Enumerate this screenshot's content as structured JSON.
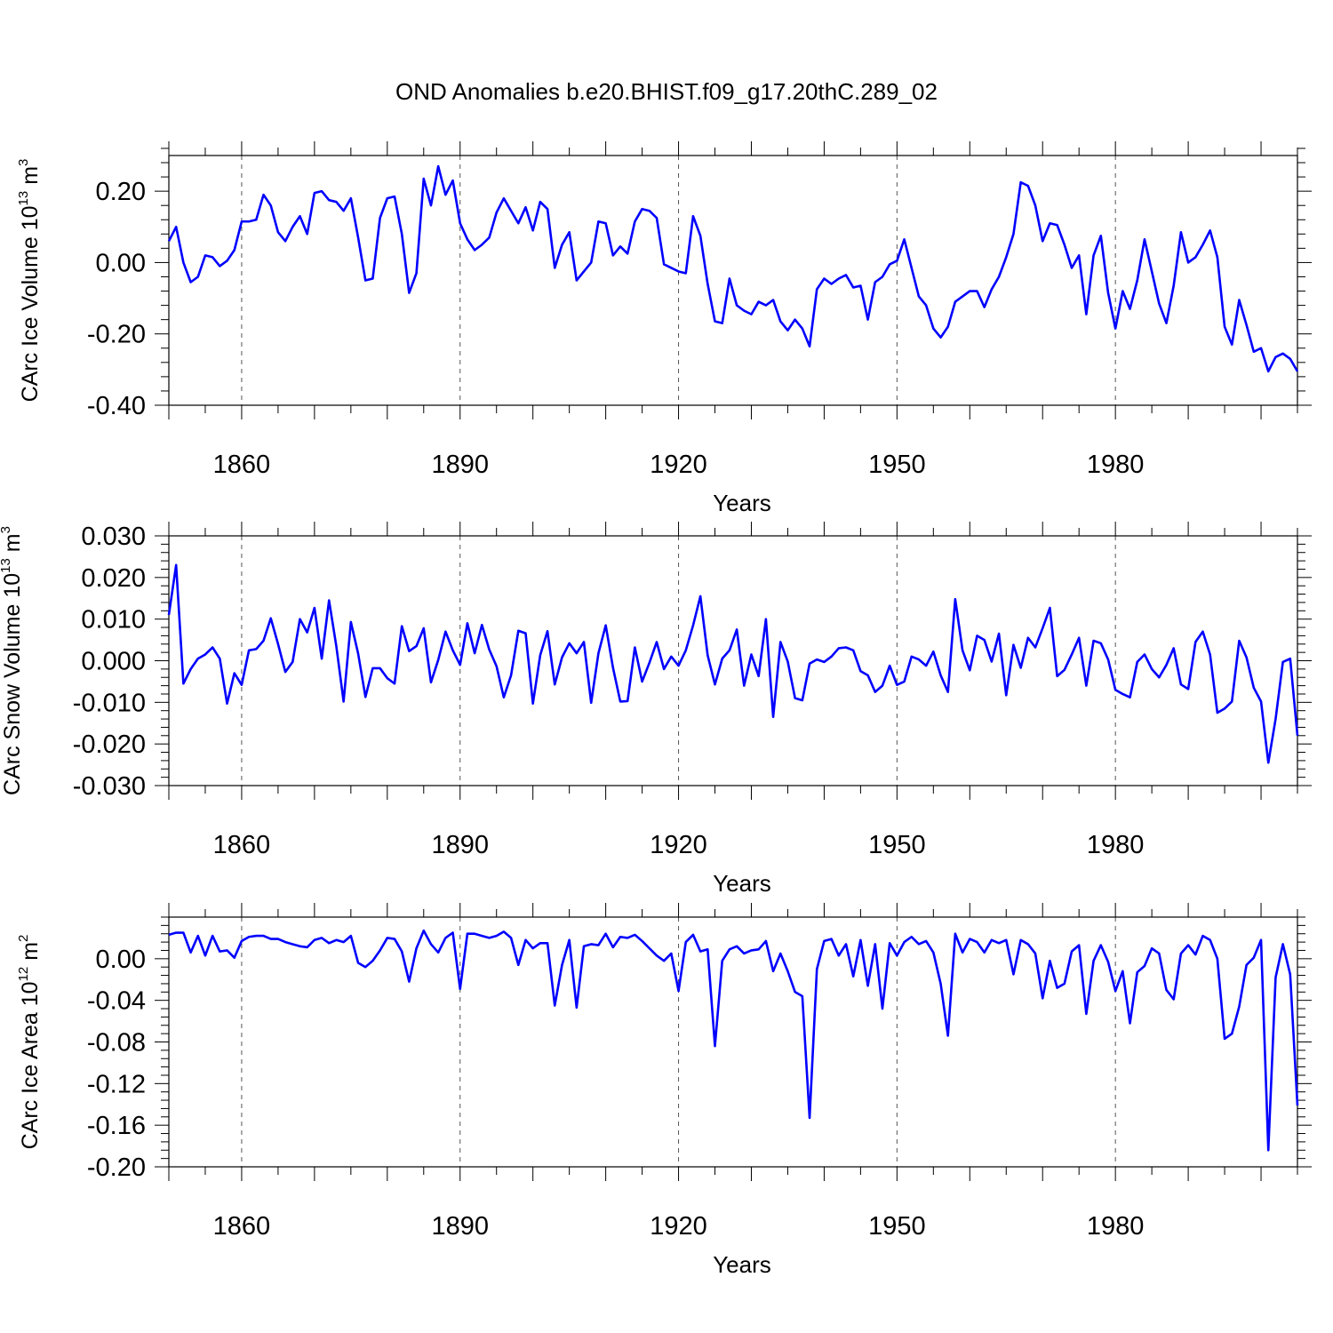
{
  "title": "OND Anomalies b.e20.BHIST.f09_g17.20thC.289_02",
  "colors": {
    "series": "#0000ff",
    "axis": "#000000",
    "grid": "#555555",
    "background": "#ffffff"
  },
  "chart_data": [
    {
      "type": "line",
      "name": "ice-volume",
      "ylabel": {
        "text": "CArc Ice Volume 10",
        "exp": "13",
        "unit": " m",
        "unit_exp": "3"
      },
      "xlabel": "Years",
      "xlim": [
        1850,
        2005
      ],
      "ylim": [
        -0.4,
        0.3
      ],
      "yticks": [
        -0.4,
        -0.2,
        0.0,
        0.2
      ],
      "ytick_labels": [
        "-0.40",
        "-0.20",
        "0.00",
        "0.20"
      ],
      "xticks": [
        1860,
        1890,
        1920,
        1950,
        1980
      ],
      "xtick_labels": [
        "1860",
        "1890",
        "1920",
        "1950",
        "1980"
      ],
      "grid": "dashed vertical at major x ticks",
      "x_start": 1850,
      "values": [
        0.06,
        0.1,
        0.0,
        -0.055,
        -0.04,
        0.02,
        0.015,
        -0.01,
        0.005,
        0.035,
        0.115,
        0.115,
        0.12,
        0.19,
        0.16,
        0.085,
        0.06,
        0.1,
        0.13,
        0.08,
        0.195,
        0.2,
        0.175,
        0.17,
        0.145,
        0.18,
        0.07,
        -0.05,
        -0.045,
        0.125,
        0.18,
        0.185,
        0.08,
        -0.085,
        -0.03,
        0.235,
        0.16,
        0.27,
        0.19,
        0.23,
        0.11,
        0.065,
        0.035,
        0.05,
        0.07,
        0.14,
        0.18,
        0.145,
        0.11,
        0.155,
        0.09,
        0.17,
        0.15,
        -0.015,
        0.05,
        0.085,
        -0.05,
        -0.025,
        0.0,
        0.115,
        0.11,
        0.02,
        0.045,
        0.025,
        0.115,
        0.15,
        0.145,
        0.125,
        -0.005,
        -0.015,
        -0.025,
        -0.03,
        0.13,
        0.075,
        -0.06,
        -0.165,
        -0.17,
        -0.045,
        -0.12,
        -0.135,
        -0.145,
        -0.11,
        -0.12,
        -0.105,
        -0.165,
        -0.19,
        -0.16,
        -0.185,
        -0.235,
        -0.075,
        -0.045,
        -0.06,
        -0.045,
        -0.035,
        -0.07,
        -0.065,
        -0.16,
        -0.055,
        -0.04,
        -0.005,
        0.005,
        0.065,
        -0.015,
        -0.095,
        -0.12,
        -0.185,
        -0.21,
        -0.18,
        -0.11,
        -0.095,
        -0.08,
        -0.08,
        -0.125,
        -0.075,
        -0.04,
        0.015,
        0.08,
        0.225,
        0.215,
        0.16,
        0.06,
        0.11,
        0.105,
        0.05,
        -0.015,
        0.02,
        -0.145,
        0.02,
        0.075,
        -0.085,
        -0.185,
        -0.08,
        -0.13,
        -0.05,
        0.065,
        -0.025,
        -0.115,
        -0.17,
        -0.065,
        0.085,
        0.0,
        0.015,
        0.05,
        0.09,
        0.015,
        -0.18,
        -0.23,
        -0.105,
        -0.175,
        -0.25,
        -0.24,
        -0.305,
        -0.265,
        -0.255,
        -0.27,
        -0.305
      ]
    },
    {
      "type": "line",
      "name": "snow-volume",
      "ylabel": {
        "text": "CArc Snow Volume 10",
        "exp": "13",
        "unit": " m",
        "unit_exp": "3"
      },
      "xlabel": "Years",
      "xlim": [
        1850,
        2005
      ],
      "ylim": [
        -0.03,
        0.03
      ],
      "yticks": [
        -0.03,
        -0.02,
        -0.01,
        0.0,
        0.01,
        0.02,
        0.03
      ],
      "ytick_labels": [
        "-0.030",
        "-0.020",
        "-0.010",
        "0.000",
        "0.010",
        "0.020",
        "0.030"
      ],
      "xticks": [
        1860,
        1890,
        1920,
        1950,
        1980
      ],
      "xtick_labels": [
        "1860",
        "1890",
        "1920",
        "1950",
        "1980"
      ],
      "grid": "dashed vertical at major x ticks",
      "x_start": 1850,
      "values": [
        0.011,
        0.023,
        -0.0055,
        -0.002,
        0.0005,
        0.0015,
        0.0032,
        0.0005,
        -0.0103,
        -0.003,
        -0.0058,
        0.0025,
        0.0028,
        0.0048,
        0.0102,
        0.004,
        -0.0027,
        -0.0003,
        0.01,
        0.0068,
        0.0127,
        0.0005,
        0.0145,
        0.0035,
        -0.0098,
        0.0093,
        0.0017,
        -0.0087,
        -0.0018,
        -0.0018,
        -0.0042,
        -0.0055,
        0.0083,
        0.0023,
        0.0035,
        0.0078,
        -0.0052,
        0.0002,
        0.007,
        0.0025,
        -0.001,
        0.009,
        0.0018,
        0.0086,
        0.0027,
        -0.0013,
        -0.0088,
        -0.0035,
        0.0072,
        0.0066,
        -0.0103,
        0.0013,
        0.0071,
        -0.0057,
        0.0008,
        0.0042,
        0.0018,
        0.0045,
        -0.0101,
        0.0018,
        0.0085,
        -0.0017,
        -0.0098,
        -0.0097,
        0.0032,
        -0.005,
        -0.0005,
        0.0045,
        -0.002,
        0.001,
        -0.0012,
        0.0025,
        0.0085,
        0.0155,
        0.0013,
        -0.0057,
        0.0005,
        0.0025,
        0.0075,
        -0.006,
        0.0015,
        -0.0037,
        0.01,
        -0.0135,
        0.0045,
        -0.0002,
        -0.009,
        -0.0095,
        -0.0007,
        0.0003,
        -0.0003,
        0.001,
        0.003,
        0.0032,
        0.0025,
        -0.0025,
        -0.0035,
        -0.0075,
        -0.006,
        -0.0012,
        -0.0058,
        -0.005,
        0.001,
        0.0003,
        -0.0012,
        0.0022,
        -0.0035,
        -0.0075,
        0.0148,
        0.0025,
        -0.0023,
        0.006,
        0.005,
        -0.0002,
        0.0065,
        -0.0083,
        0.0038,
        -0.0017,
        0.0055,
        0.0032,
        0.0078,
        0.0127,
        -0.0037,
        -0.0022,
        0.0015,
        0.0055,
        -0.006,
        0.0048,
        0.0042,
        0.0003,
        -0.007,
        -0.008,
        -0.0088,
        -0.0003,
        0.0015,
        -0.002,
        -0.004,
        -0.001,
        0.003,
        -0.0057,
        -0.0068,
        0.0045,
        0.007,
        0.0015,
        -0.0125,
        -0.0115,
        -0.0098,
        0.0048,
        0.0008,
        -0.0065,
        -0.0098,
        -0.0245,
        -0.014,
        -0.0003,
        0.0005,
        -0.018
      ]
    },
    {
      "type": "line",
      "name": "ice-area",
      "ylabel": {
        "text": "CArc Ice Area 10",
        "exp": "12",
        "unit": " m",
        "unit_exp": "2"
      },
      "xlabel": "Years",
      "xlim": [
        1850,
        2005
      ],
      "ylim": [
        -0.2,
        0.04
      ],
      "yticks": [
        -0.2,
        -0.16,
        -0.12,
        -0.08,
        -0.04,
        0.0
      ],
      "ytick_labels": [
        "-0.20",
        "-0.16",
        "-0.12",
        "-0.08",
        "-0.04",
        "0.00"
      ],
      "xticks": [
        1860,
        1890,
        1920,
        1950,
        1980
      ],
      "xtick_labels": [
        "1860",
        "1890",
        "1920",
        "1950",
        "1980"
      ],
      "grid": "dashed vertical at major x ticks",
      "x_start": 1850,
      "values": [
        0.023,
        0.025,
        0.025,
        0.006,
        0.022,
        0.003,
        0.022,
        0.007,
        0.008,
        0.001,
        0.017,
        0.021,
        0.022,
        0.022,
        0.019,
        0.019,
        0.016,
        0.014,
        0.012,
        0.011,
        0.018,
        0.02,
        0.015,
        0.018,
        0.016,
        0.022,
        -0.004,
        -0.008,
        -0.002,
        0.008,
        0.02,
        0.019,
        0.007,
        -0.022,
        0.01,
        0.027,
        0.014,
        0.006,
        0.02,
        0.025,
        -0.029,
        0.024,
        0.024,
        0.022,
        0.02,
        0.022,
        0.026,
        0.02,
        -0.006,
        0.018,
        0.01,
        0.015,
        0.015,
        -0.045,
        -0.006,
        0.018,
        -0.047,
        0.012,
        0.014,
        0.013,
        0.024,
        0.011,
        0.021,
        0.02,
        0.023,
        0.017,
        0.01,
        0.003,
        -0.002,
        0.005,
        -0.031,
        0.016,
        0.023,
        0.007,
        0.009,
        -0.084,
        -0.002,
        0.009,
        0.012,
        0.005,
        0.008,
        0.009,
        0.017,
        -0.012,
        0.005,
        -0.012,
        -0.032,
        -0.036,
        -0.153,
        -0.01,
        0.017,
        0.019,
        0.003,
        0.014,
        -0.017,
        0.018,
        -0.026,
        0.014,
        -0.048,
        0.015,
        0.003,
        0.016,
        0.021,
        0.014,
        0.017,
        0.006,
        -0.024,
        -0.074,
        0.024,
        0.006,
        0.019,
        0.016,
        0.006,
        0.018,
        0.015,
        0.018,
        -0.015,
        0.018,
        0.014,
        0.005,
        -0.038,
        -0.002,
        -0.028,
        -0.024,
        0.007,
        0.013,
        -0.053,
        -0.002,
        0.013,
        -0.003,
        -0.031,
        -0.012,
        -0.062,
        -0.013,
        -0.007,
        0.01,
        0.005,
        -0.03,
        -0.039,
        0.005,
        0.013,
        0.004,
        0.022,
        0.018,
        0.0,
        -0.077,
        -0.072,
        -0.046,
        -0.006,
        0.001,
        0.018,
        -0.184,
        -0.018,
        0.014,
        -0.015,
        -0.141
      ]
    }
  ]
}
